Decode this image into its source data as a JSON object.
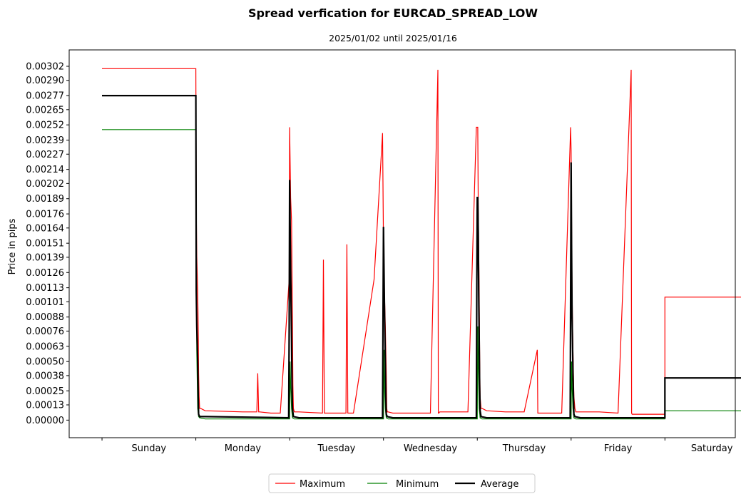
{
  "chart_data": {
    "type": "line",
    "title": "Spread verfication for EURCAD_SPREAD_LOW",
    "subtitle": "2025/01/02 until 2025/01/16",
    "xlabel": "",
    "ylabel": "Price in pips",
    "categories": [
      "Sunday",
      "Monday",
      "Tuesday",
      "Wednesday",
      "Thursday",
      "Friday",
      "Saturday"
    ],
    "yticks": [
      "0.00000",
      "0.00013",
      "0.00025",
      "0.00038",
      "0.00050",
      "0.00063",
      "0.00076",
      "0.00088",
      "0.00101",
      "0.00113",
      "0.00126",
      "0.00139",
      "0.00151",
      "0.00164",
      "0.00176",
      "0.00189",
      "0.00202",
      "0.00214",
      "0.00227",
      "0.00239",
      "0.00252",
      "0.00265",
      "0.00277",
      "0.00290",
      "0.00302"
    ],
    "ylim": [
      -0.00015,
      0.00316
    ],
    "xlim": [
      -0.35,
      6.75
    ],
    "grid": false,
    "legend_position": "bottom-center",
    "series": [
      {
        "name": "Maximum",
        "color": "#ff0000",
        "width": 1.2,
        "x": [
          0.0,
          1.0,
          1.005,
          1.01,
          1.02,
          1.025,
          1.03,
          1.035,
          1.04,
          1.05,
          1.1,
          1.5,
          1.65,
          1.66,
          1.67,
          1.68,
          1.8,
          1.9,
          1.995,
          2.0,
          2.01,
          2.02,
          2.03,
          2.035,
          2.04,
          2.05,
          2.1,
          2.35,
          2.36,
          2.37,
          2.6,
          2.61,
          2.62,
          2.66,
          2.67,
          2.68,
          2.9,
          2.99,
          3.0,
          3.01,
          3.02,
          3.03,
          3.035,
          3.04,
          3.05,
          3.1,
          3.5,
          3.58,
          3.585,
          3.59,
          3.6,
          3.9,
          3.99,
          4.0,
          4.005,
          4.01,
          4.02,
          4.025,
          4.03,
          4.04,
          4.05,
          4.1,
          4.3,
          4.5,
          4.64,
          4.645,
          4.65,
          4.8,
          4.9,
          4.995,
          5.0,
          5.01,
          5.02,
          5.03,
          5.04,
          5.05,
          5.1,
          5.3,
          5.5,
          5.64,
          5.645,
          5.65,
          5.7,
          5.8,
          5.9,
          6.0,
          6.0,
          7.0
        ],
        "y": [
          0.003,
          0.003,
          0.0018,
          0.0014,
          0.0011,
          0.0008,
          0.0004,
          0.0002,
          0.0001,
          0.0001,
          8e-05,
          7e-05,
          7e-05,
          0.0004,
          7e-05,
          7e-05,
          6e-05,
          6e-05,
          0.0012,
          0.0025,
          0.0019,
          0.0017,
          0.0008,
          0.0003,
          0.0001,
          7e-05,
          7e-05,
          6e-05,
          0.00137,
          6e-05,
          6e-05,
          0.0015,
          6e-05,
          6e-05,
          6e-05,
          6e-05,
          0.0012,
          0.00245,
          0.0015,
          0.0011,
          0.0008,
          0.0004,
          0.0001,
          7e-05,
          7e-05,
          6e-05,
          6e-05,
          0.00299,
          6e-05,
          6e-05,
          7e-05,
          7e-05,
          0.0025,
          0.0025,
          0.0025,
          0.0018,
          0.0011,
          0.0006,
          0.0002,
          0.0001,
          0.0001,
          8e-05,
          7e-05,
          7e-05,
          0.0006,
          6e-05,
          6e-05,
          6e-05,
          6e-05,
          0.0025,
          0.0023,
          0.0011,
          0.0006,
          0.0002,
          0.0001,
          7e-05,
          7e-05,
          7e-05,
          6e-05,
          0.00299,
          6e-05,
          5e-05,
          5e-05,
          5e-05,
          5e-05,
          5e-05,
          0.00105,
          0.00105
        ]
      },
      {
        "name": "Minimum",
        "color": "#008000",
        "width": 1.2,
        "x": [
          0.0,
          1.0,
          1.01,
          1.02,
          1.03,
          1.04,
          1.1,
          2.0,
          2.005,
          2.01,
          2.02,
          2.03,
          2.05,
          3.0,
          3.005,
          3.01,
          3.02,
          3.03,
          3.05,
          4.0,
          4.005,
          4.01,
          4.02,
          4.03,
          4.05,
          5.0,
          5.005,
          5.01,
          5.02,
          5.03,
          5.05,
          6.0,
          6.0,
          7.0
        ],
        "y": [
          0.00248,
          0.00248,
          0.0006,
          0.0001,
          3e-05,
          2e-05,
          1e-05,
          1e-05,
          0.0005,
          0.0003,
          0.0001,
          2e-05,
          1e-05,
          1e-05,
          0.0006,
          0.0003,
          0.0001,
          2e-05,
          1e-05,
          1e-05,
          0.0008,
          0.0005,
          0.0001,
          2e-05,
          1e-05,
          1e-05,
          0.0005,
          0.0003,
          0.0001,
          2e-05,
          1e-05,
          1e-05,
          8e-05,
          8e-05
        ]
      },
      {
        "name": "Average",
        "color": "#000000",
        "width": 2.2,
        "x": [
          0.0,
          1.0,
          1.005,
          1.01,
          1.02,
          1.025,
          1.03,
          1.04,
          1.1,
          1.99,
          1.995,
          2.0,
          2.01,
          2.02,
          2.025,
          2.03,
          2.04,
          2.1,
          2.99,
          2.995,
          3.0,
          3.01,
          3.02,
          3.025,
          3.03,
          3.04,
          3.1,
          3.99,
          3.995,
          4.0,
          4.005,
          4.01,
          4.015,
          4.02,
          4.025,
          4.03,
          4.04,
          4.1,
          4.99,
          4.995,
          5.0,
          5.005,
          5.01,
          5.02,
          5.025,
          5.03,
          5.04,
          5.1,
          5.99,
          6.0,
          6.0,
          7.0
        ],
        "y": [
          0.00277,
          0.00277,
          0.0011,
          0.0008,
          0.0005,
          0.0002,
          5e-05,
          3e-05,
          3e-05,
          2e-05,
          0.0008,
          0.00205,
          0.0013,
          0.0007,
          0.0003,
          0.0001,
          3e-05,
          2e-05,
          2e-05,
          0.0008,
          0.00165,
          0.001,
          0.0005,
          0.0002,
          5e-05,
          3e-05,
          2e-05,
          2e-05,
          0.0012,
          0.0019,
          0.0019,
          0.0016,
          0.0011,
          0.0007,
          0.0003,
          8e-05,
          3e-05,
          2e-05,
          2e-05,
          0.0011,
          0.0022,
          0.0015,
          0.0009,
          0.0004,
          0.0002,
          5e-05,
          3e-05,
          2e-05,
          2e-05,
          2e-05,
          0.00036,
          0.00036
        ]
      }
    ]
  }
}
